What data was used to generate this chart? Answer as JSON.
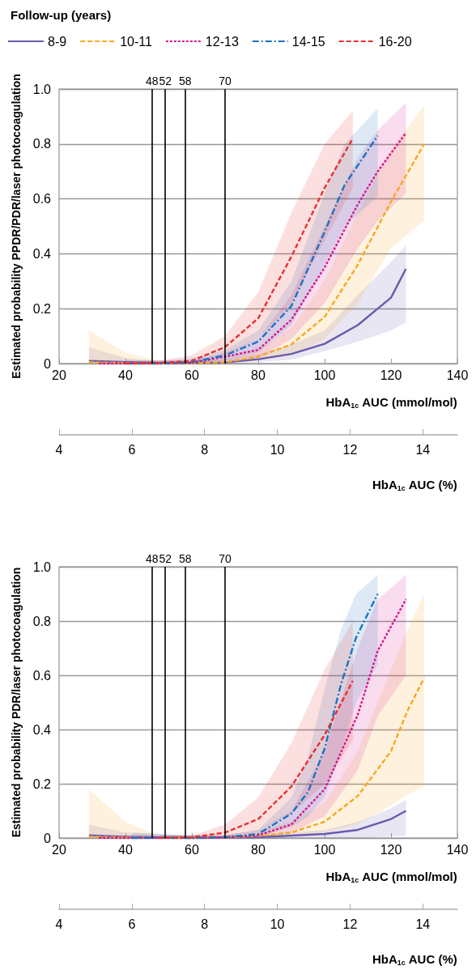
{
  "chart_data": [
    {
      "type": "line",
      "legend_title": "Follow-up (years)",
      "legend": "top left",
      "ylabel": "Estimated probability PPDR/PDR/laser photocoagulation",
      "xlabel": "HbA$_{1c}$ AUC (mmol/mol)",
      "x2label": "HbA$_{1c}$ AUC (%)",
      "xlim": [
        20,
        140
      ],
      "xticks": [
        20,
        40,
        60,
        80,
        100,
        120,
        140
      ],
      "x2lim": [
        4,
        14.95
      ],
      "x2ticks": [
        4,
        6,
        8,
        10,
        12,
        14
      ],
      "ylim": [
        0,
        1
      ],
      "yticks": [
        0,
        {
          "value": 0.2,
          "label": "0.2"
        },
        {
          "value": 0.4,
          "label": "0.4"
        },
        {
          "value": 0.6,
          "label": "0.6"
        },
        {
          "value": 0.8,
          "label": "0.8"
        },
        {
          "value": 1,
          "label": "1.0"
        }
      ],
      "grid": "y",
      "marker": "none",
      "ref_lines": [
        {
          "axis": "x",
          "value": 48,
          "label": "48",
          "color": "#000000"
        },
        {
          "axis": "x",
          "value": 52,
          "label": "52",
          "color": "#000000"
        },
        {
          "axis": "x",
          "value": 58,
          "label": "58",
          "color": "#000000"
        },
        {
          "axis": "x",
          "value": 70,
          "label": "70",
          "color": "#000000"
        }
      ],
      "series": [
        {
          "name": "8-9",
          "color": "#6a5aad",
          "line_style": "solid",
          "x": [
            29,
            40,
            50,
            60,
            70,
            80,
            90,
            100,
            110,
            120,
            124.5
          ],
          "values": [
            0.01,
            0.005,
            0.002,
            0.002,
            0.004,
            0.016,
            0.035,
            0.072,
            0.14,
            0.24,
            0.345
          ],
          "lower": [
            0,
            0,
            0,
            0,
            0,
            0.005,
            0.015,
            0.045,
            0.08,
            0.12,
            0.15
          ],
          "upper": [
            0.06,
            0.02,
            0.01,
            0.01,
            0.015,
            0.035,
            0.07,
            0.12,
            0.25,
            0.37,
            0.43
          ]
        },
        {
          "name": "10-11",
          "color": "#f7a823",
          "line_style": "dashed",
          "x": [
            29,
            40,
            50,
            60,
            70,
            80,
            90,
            100,
            110,
            120,
            130
          ],
          "values": [
            0.005,
            0.002,
            0,
            0.001,
            0.005,
            0.025,
            0.07,
            0.17,
            0.36,
            0.59,
            0.8
          ],
          "lower": [
            0,
            0,
            0,
            0,
            0,
            0.01,
            0.03,
            0.09,
            0.22,
            0.42,
            0.52
          ],
          "upper": [
            0.12,
            0.04,
            0.01,
            0.01,
            0.02,
            0.05,
            0.13,
            0.3,
            0.55,
            0.78,
            0.94
          ]
        },
        {
          "name": "12-13",
          "color": "#d6168b",
          "line_style": "dotted",
          "x": [
            32,
            40,
            50,
            60,
            70,
            80,
            90,
            100,
            110,
            116,
            124.5
          ],
          "values": [
            0,
            0,
            0,
            0.003,
            0.025,
            0.05,
            0.16,
            0.35,
            0.58,
            0.7,
            0.84
          ],
          "lower": [
            0,
            0,
            0,
            0,
            0.01,
            0.02,
            0.09,
            0.22,
            0.42,
            0.52,
            0.62
          ],
          "upper": [
            0.01,
            0.01,
            0.01,
            0.01,
            0.04,
            0.09,
            0.25,
            0.5,
            0.75,
            0.85,
            0.95
          ]
        },
        {
          "name": "14-15",
          "color": "#1a73c0",
          "line_style": "dashdot",
          "x": [
            40,
            50,
            60,
            70,
            80,
            90,
            100,
            106,
            116
          ],
          "values": [
            0,
            0,
            0.005,
            0.03,
            0.08,
            0.21,
            0.48,
            0.65,
            0.83
          ],
          "lower": [
            0,
            0,
            0,
            0.01,
            0.04,
            0.14,
            0.36,
            0.5,
            0.61
          ],
          "upper": [
            0.01,
            0.01,
            0.02,
            0.05,
            0.12,
            0.3,
            0.62,
            0.8,
            0.93
          ]
        },
        {
          "name": "16-20",
          "color": "#e8302f",
          "line_style": "dashed",
          "x": [
            40,
            50,
            60,
            70,
            80,
            90,
            100,
            108.5
          ],
          "values": [
            0,
            0.002,
            0.01,
            0.06,
            0.165,
            0.39,
            0.64,
            0.82
          ],
          "lower": [
            0,
            0,
            0,
            0.03,
            0.09,
            0.22,
            0.45,
            0.64
          ],
          "upper": [
            0.01,
            0.01,
            0.03,
            0.1,
            0.26,
            0.55,
            0.8,
            0.92
          ]
        }
      ]
    },
    {
      "type": "line",
      "ylabel": "Estimated probability PDR/laser photocoagulation",
      "xlabel": "HbA$_{1c}$ AUC (mmol/mol)",
      "x2label": "HbA$_{1c}$ AUC (%)",
      "xlim": [
        20,
        140
      ],
      "xticks": [
        20,
        40,
        60,
        80,
        100,
        120,
        140
      ],
      "x2lim": [
        4,
        14.95
      ],
      "x2ticks": [
        4,
        6,
        8,
        10,
        12,
        14
      ],
      "ylim": [
        0,
        1
      ],
      "yticks": [
        0,
        {
          "value": 0.2,
          "label": "0.2"
        },
        {
          "value": 0.4,
          "label": "0.4"
        },
        {
          "value": 0.6,
          "label": "0.6"
        },
        {
          "value": 0.8,
          "label": "0.8"
        },
        {
          "value": 1,
          "label": "1.0"
        }
      ],
      "grid": "y",
      "marker": "none",
      "ref_lines": [
        {
          "axis": "x",
          "value": 48,
          "label": "48",
          "color": "#000000"
        },
        {
          "axis": "x",
          "value": 52,
          "label": "52",
          "color": "#000000"
        },
        {
          "axis": "x",
          "value": 58,
          "label": "58",
          "color": "#000000"
        },
        {
          "axis": "x",
          "value": 70,
          "label": "70",
          "color": "#000000"
        }
      ],
      "series": [
        {
          "color": "#6a5aad",
          "line_style": "solid",
          "x": [
            29,
            40,
            60,
            80,
            100,
            110,
            120,
            124.5
          ],
          "values": [
            0.01,
            0.005,
            0,
            0.003,
            0.015,
            0.03,
            0.07,
            0.1
          ],
          "lower": [
            0,
            0,
            0,
            0,
            0,
            0,
            0.005,
            0.01
          ],
          "upper": [
            0.05,
            0.02,
            0.01,
            0.01,
            0.03,
            0.06,
            0.11,
            0.14
          ]
        },
        {
          "color": "#f7a823",
          "line_style": "dashed",
          "x": [
            29,
            40,
            50,
            60,
            70,
            80,
            90,
            100,
            110,
            120,
            125,
            130
          ],
          "values": [
            0.005,
            0.002,
            0,
            0,
            0.002,
            0.008,
            0.02,
            0.06,
            0.155,
            0.32,
            0.47,
            0.59
          ],
          "lower": [
            0,
            0,
            0,
            0,
            0,
            0,
            0.005,
            0.02,
            0.05,
            0.12,
            0.16,
            0.19
          ],
          "upper": [
            0.18,
            0.06,
            0.01,
            0.01,
            0.01,
            0.03,
            0.06,
            0.13,
            0.32,
            0.62,
            0.77,
            0.9
          ]
        },
        {
          "color": "#d6168b",
          "line_style": "dotted",
          "x": [
            32,
            50,
            60,
            70,
            80,
            90,
            100,
            110,
            116,
            124.5
          ],
          "values": [
            0,
            0,
            0,
            0.002,
            0.01,
            0.05,
            0.18,
            0.455,
            0.69,
            0.88
          ],
          "lower": [
            0,
            0,
            0,
            0,
            0,
            0.02,
            0.08,
            0.25,
            0.45,
            0.6
          ],
          "upper": [
            0.01,
            0.01,
            0.01,
            0.01,
            0.03,
            0.1,
            0.32,
            0.7,
            0.88,
            0.97
          ]
        },
        {
          "color": "#1a73c0",
          "line_style": "dashdot",
          "x": [
            42,
            60,
            70,
            80,
            90,
            95,
            100,
            105,
            109.5,
            116
          ],
          "values": [
            0,
            0,
            0.003,
            0.015,
            0.09,
            0.17,
            0.33,
            0.57,
            0.74,
            0.9
          ],
          "lower": [
            0,
            0,
            0,
            0.005,
            0.04,
            0.08,
            0.15,
            0.32,
            0.5,
            0.64
          ],
          "upper": [
            0.02,
            0.01,
            0.01,
            0.03,
            0.15,
            0.3,
            0.55,
            0.77,
            0.9,
            0.97
          ]
        },
        {
          "color": "#e8302f",
          "line_style": "dashed",
          "x": [
            50,
            60,
            70,
            80,
            90,
            100,
            108.5
          ],
          "values": [
            0,
            0.003,
            0.02,
            0.07,
            0.19,
            0.38,
            0.58
          ],
          "lower": [
            0,
            0,
            0.005,
            0.03,
            0.09,
            0.2,
            0.36
          ],
          "upper": [
            0.01,
            0.01,
            0.05,
            0.15,
            0.35,
            0.62,
            0.8
          ]
        }
      ]
    }
  ]
}
